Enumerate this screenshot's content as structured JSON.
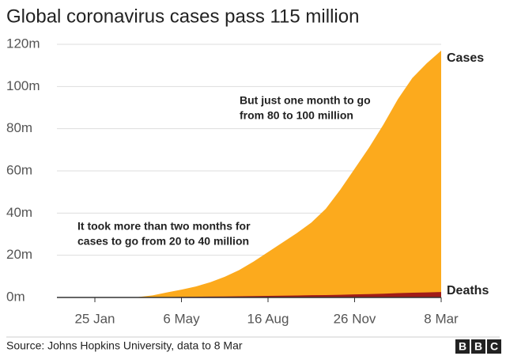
{
  "chart_data": {
    "type": "area",
    "title": "Global coronavirus cases pass 115 million",
    "categories": [
      "25 Jan",
      null,
      null,
      null,
      null,
      null,
      "6 May",
      null,
      null,
      null,
      null,
      null,
      "16 Aug",
      null,
      null,
      null,
      null,
      null,
      "26 Nov",
      null,
      null,
      null,
      null,
      null,
      "8 Mar"
    ],
    "series": [
      {
        "name": "Cases",
        "color": "#fcaa1d",
        "values": [
          0,
          0.04,
          0.08,
          0.18,
          1.0,
          2.4,
          3.7,
          5.2,
          7.2,
          9.8,
          13,
          17,
          21.5,
          26,
          30.5,
          35.5,
          42,
          51,
          61,
          71,
          82,
          94,
          104,
          111,
          117
        ]
      },
      {
        "name": "Deaths",
        "color": "#a01c18",
        "values": [
          0,
          0,
          0,
          0.007,
          0.06,
          0.16,
          0.26,
          0.34,
          0.41,
          0.49,
          0.57,
          0.67,
          0.77,
          0.86,
          0.96,
          1.06,
          1.14,
          1.26,
          1.43,
          1.61,
          1.8,
          2.04,
          2.24,
          2.41,
          2.6
        ]
      }
    ],
    "ylim": [
      0,
      120
    ],
    "yticks": [
      {
        "value": 0,
        "label": "0m"
      },
      {
        "value": 20,
        "label": "20m"
      },
      {
        "value": 40,
        "label": "40m"
      },
      {
        "value": 60,
        "label": "60m"
      },
      {
        "value": 80,
        "label": "80m"
      },
      {
        "value": 100,
        "label": "100m"
      },
      {
        "value": 120,
        "label": "120m"
      }
    ],
    "grid": true,
    "annotations": [
      {
        "lines": [
          "But just one month to go",
          "from 80 to 100 million"
        ]
      },
      {
        "lines": [
          "It took more than two months for",
          "cases to go from 20 to 40 million"
        ]
      }
    ],
    "source": "Source: Johns Hopkins University, data to 8 Mar",
    "logo": [
      "B",
      "B",
      "C"
    ]
  }
}
